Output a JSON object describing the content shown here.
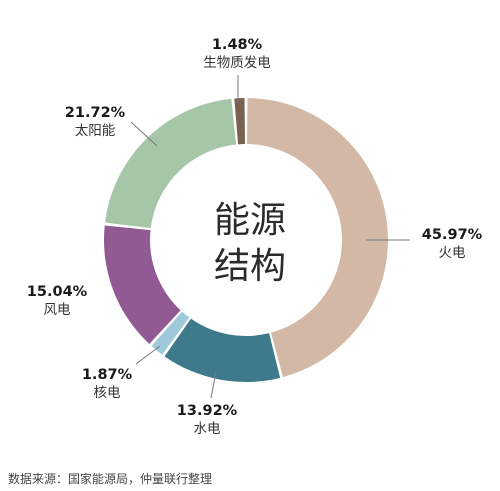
{
  "chart_data": {
    "type": "pie",
    "center_label": [
      "能源",
      "结构"
    ],
    "slices": [
      {
        "label": "火电",
        "value": 45.97,
        "display": "45.97%",
        "color": "#d3b8a6"
      },
      {
        "label": "水电",
        "value": 13.92,
        "display": "13.92%",
        "color": "#3f7a8c"
      },
      {
        "label": "核电",
        "value": 1.87,
        "display": "1.87%",
        "color": "#9ec9db"
      },
      {
        "label": "风电",
        "value": 15.04,
        "display": "15.04%",
        "color": "#915a93"
      },
      {
        "label": "太阳能",
        "value": 21.72,
        "display": "21.72%",
        "color": "#a5c7a8"
      },
      {
        "label": "生物质发电",
        "value": 1.48,
        "display": "1.48%",
        "color": "#7a6152"
      }
    ]
  },
  "source_note": "数据来源：国家能源局，仲量联行整理"
}
